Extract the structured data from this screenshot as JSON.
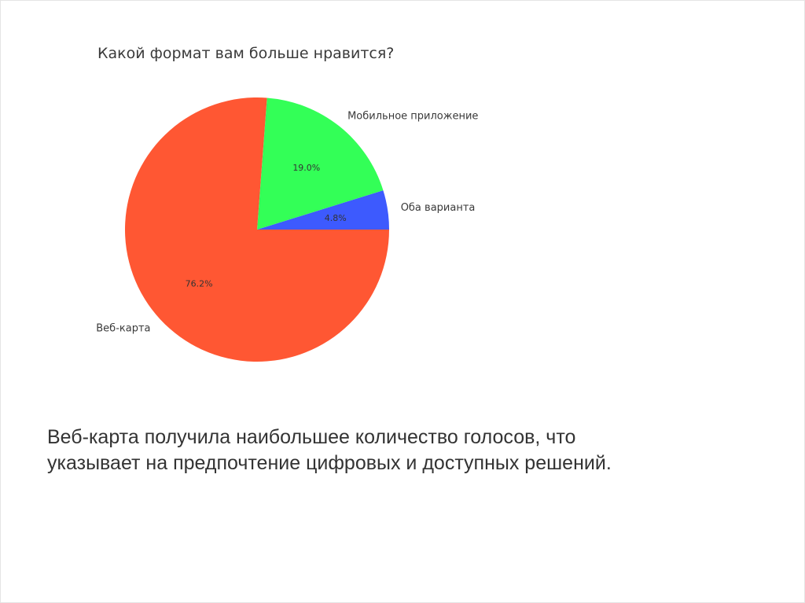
{
  "chart_data": {
    "type": "pie",
    "title": "Какой формат вам больше нравится?",
    "labels": [
      "Оба варианта",
      "Мобильное приложение",
      "Веб-карта"
    ],
    "values": [
      4.8,
      19.0,
      76.2
    ],
    "autopct": [
      "4.8%",
      "19.0%",
      "76.2%"
    ],
    "colors": [
      "#3d5afe",
      "#33ff57",
      "#ff5733"
    ],
    "start_angle_deg": 0,
    "direction": "counterclockwise"
  },
  "caption": {
    "line1": "Веб-карта получила наибольшее количество голосов, что",
    "line2": "указывает на предпочтение цифровых и доступных решений."
  }
}
